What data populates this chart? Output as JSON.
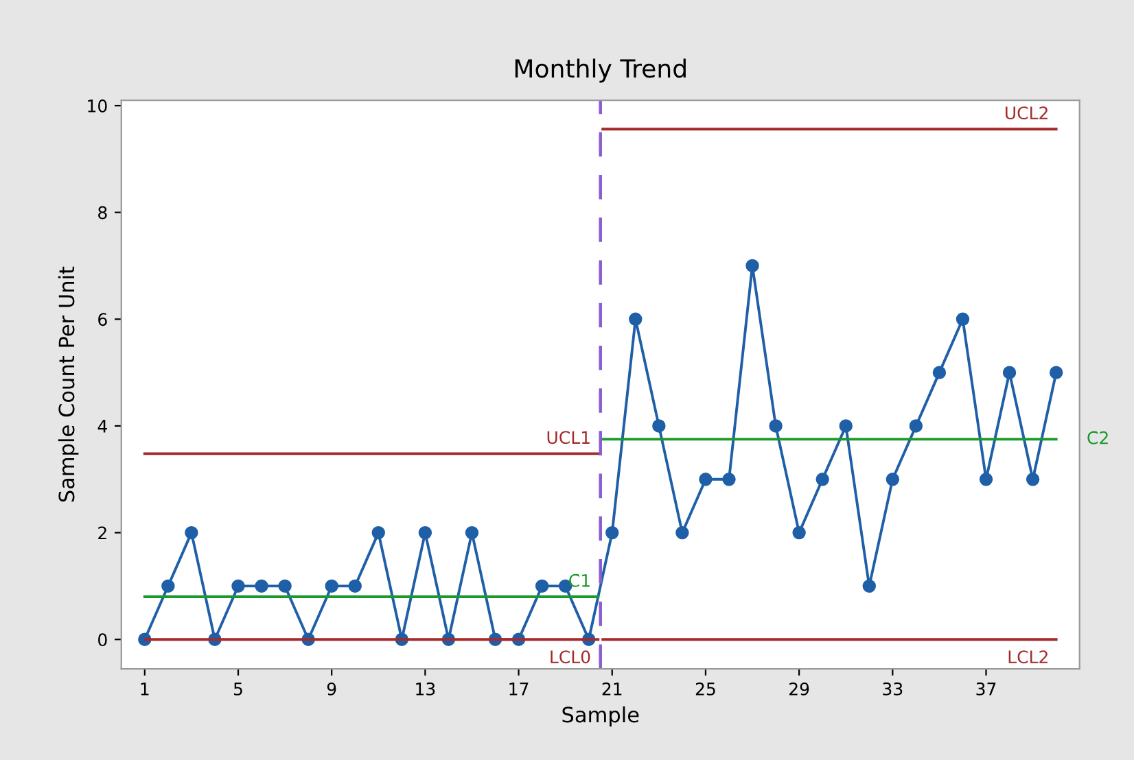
{
  "chart_data": {
    "type": "line",
    "title": "Monthly Trend",
    "xlabel": "Sample",
    "ylabel": "Sample Count Per Unit",
    "xlim": [
      0,
      41
    ],
    "xticks": [
      1,
      5,
      9,
      13,
      17,
      21,
      25,
      29,
      33,
      37
    ],
    "ylim": [
      -0.55,
      10.1
    ],
    "yticks": [
      0,
      2,
      4,
      6,
      8,
      10
    ],
    "grid": false,
    "legend": false,
    "series": [
      {
        "marker": "circle",
        "color": "#1f5fa8",
        "x": [
          1,
          2,
          3,
          4,
          5,
          6,
          7,
          8,
          9,
          10,
          11,
          12,
          13,
          14,
          15,
          16,
          17,
          18,
          19,
          20,
          21,
          22,
          23,
          24,
          25,
          26,
          27,
          28,
          29,
          30,
          31,
          32,
          33,
          34,
          35,
          36,
          37,
          38,
          39,
          40
        ],
        "values": [
          0,
          1,
          2,
          0,
          1,
          1,
          1,
          0,
          1,
          1,
          2,
          0,
          2,
          0,
          2,
          0,
          0,
          1,
          1,
          0,
          2,
          6,
          4,
          2,
          3,
          3,
          7,
          4,
          2,
          3,
          4,
          1,
          3,
          4,
          5,
          6,
          3,
          5,
          3,
          5
        ]
      },
      {
        "name": "UCL1",
        "color": "#a52a2a",
        "x": [
          1,
          20.4
        ],
        "values": [
          3.48,
          3.48
        ]
      },
      {
        "name": "C̄1",
        "color": "#1a9a2a",
        "x": [
          1,
          20.4
        ],
        "values": [
          0.8,
          0.8
        ]
      },
      {
        "name": "LCL0",
        "color": "#a52a2a",
        "x": [
          1,
          20.4
        ],
        "values": [
          0,
          0
        ]
      },
      {
        "name": "UCL2",
        "color": "#a52a2a",
        "x": [
          20.6,
          40
        ],
        "values": [
          9.56,
          9.56
        ]
      },
      {
        "name": "C̄2",
        "color": "#1a9a2a",
        "x": [
          20.6,
          40
        ],
        "values": [
          3.75,
          3.75
        ]
      },
      {
        "name": "LCL2",
        "color": "#a52a2a",
        "x": [
          20.6,
          40
        ],
        "values": [
          0,
          0
        ]
      }
    ],
    "ref_lines": [
      {
        "axis": "x",
        "value": 20.5,
        "label": null,
        "color": "#8a5cd0",
        "line_style": "dashed"
      }
    ]
  }
}
